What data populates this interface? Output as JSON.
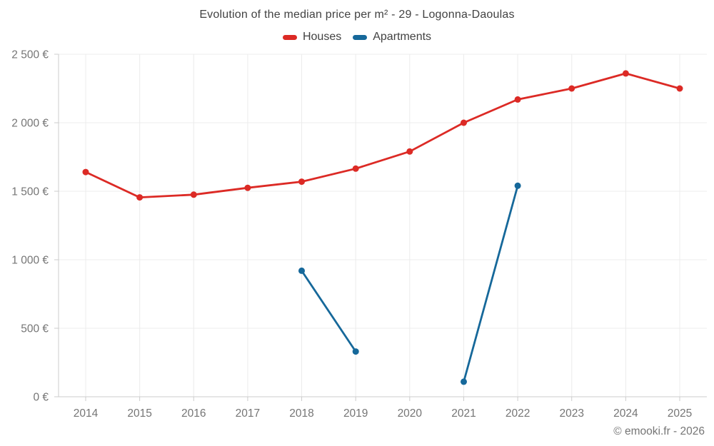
{
  "title": "Evolution of the median price per m² - 29 - Logonna-Daoulas",
  "legend": {
    "items": [
      {
        "label": "Houses",
        "color": "#dc2a25"
      },
      {
        "label": "Apartments",
        "color": "#16689a"
      }
    ]
  },
  "footer": {
    "copyright": "© emooki.fr - 2026"
  },
  "chart_data": {
    "type": "line",
    "title": "Evolution of the median price per m² - 29 - Logonna-Daoulas",
    "x": [
      2014,
      2015,
      2016,
      2017,
      2018,
      2019,
      2020,
      2021,
      2022,
      2023,
      2024,
      2025
    ],
    "xtick_labels": [
      "2014",
      "2015",
      "2016",
      "2017",
      "2018",
      "2019",
      "2020",
      "2021",
      "2022",
      "2023",
      "2024",
      "2025"
    ],
    "series": [
      {
        "name": "Houses",
        "color": "#dc2a25",
        "values": [
          1640,
          1455,
          1475,
          1525,
          1570,
          1665,
          1790,
          2000,
          2170,
          2250,
          2360,
          2250
        ]
      },
      {
        "name": "Apartments",
        "color": "#16689a",
        "values": [
          null,
          null,
          null,
          null,
          920,
          330,
          null,
          110,
          1540,
          null,
          null,
          null
        ]
      }
    ],
    "ylim": [
      0,
      2500
    ],
    "ytick_step": 500,
    "ytick_labels": [
      "0 €",
      "500 €",
      "1 000 €",
      "1 500 €",
      "2 000 €",
      "2 500 €"
    ],
    "ylabel": "",
    "xlabel": "",
    "grid": true,
    "legend_position": "top",
    "grid_color": "#ececec",
    "axis_color": "#cccccc",
    "tick_label_color": "#757575"
  }
}
